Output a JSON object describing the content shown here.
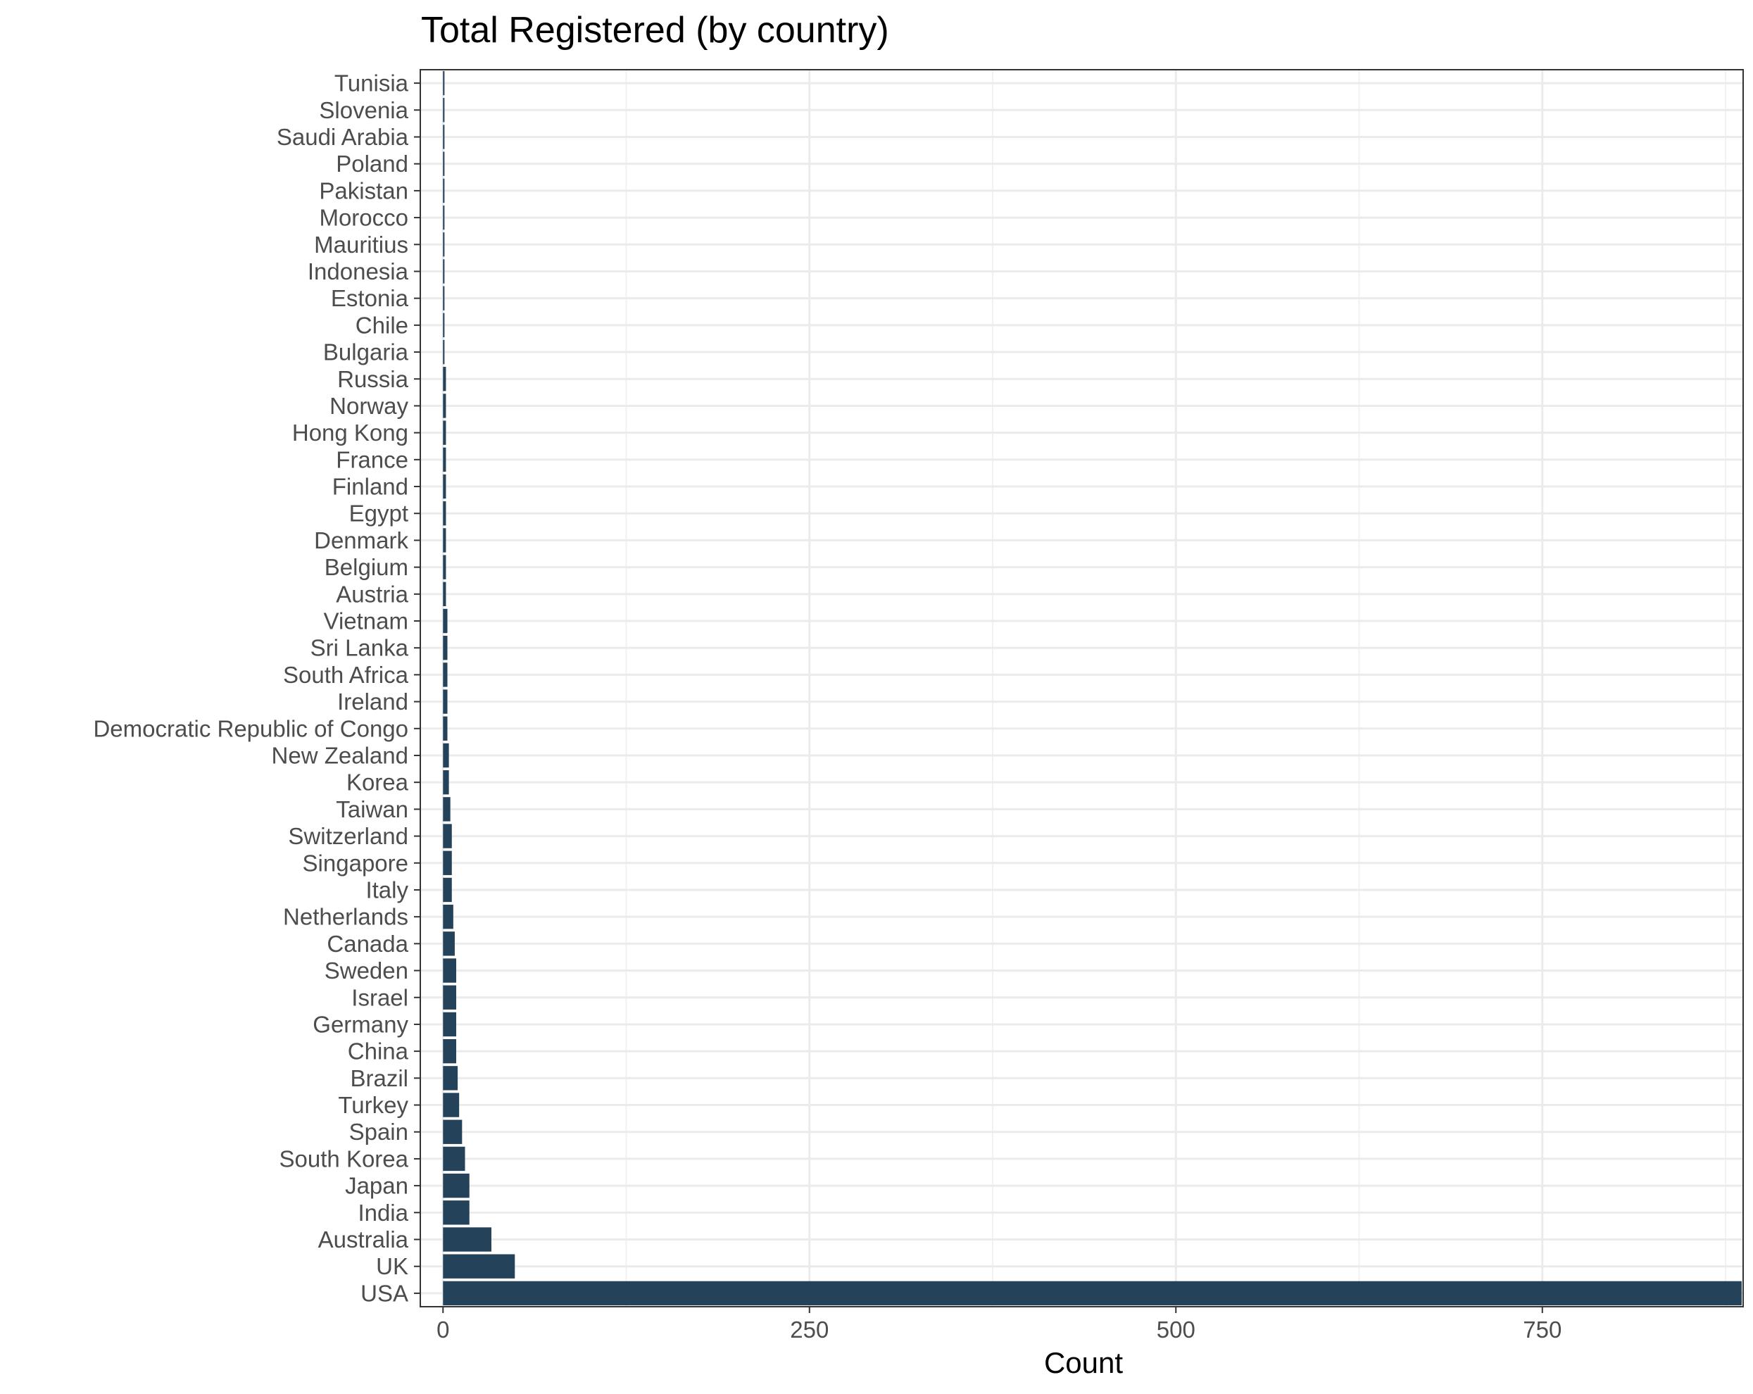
{
  "chart_data": {
    "type": "bar",
    "orientation": "horizontal",
    "title": "Total Registered (by country)",
    "xlabel": "Count",
    "ylabel": "",
    "xlim": [
      -15.5,
      887
    ],
    "xticks": [
      0,
      250,
      500,
      750
    ],
    "grid": true,
    "bar_color": "#24425a",
    "categories": [
      "Tunisia",
      "Slovenia",
      "Saudi Arabia",
      "Poland",
      "Pakistan",
      "Morocco",
      "Mauritius",
      "Indonesia",
      "Estonia",
      "Chile",
      "Bulgaria",
      "Russia",
      "Norway",
      "Hong Kong",
      "France",
      "Finland",
      "Egypt",
      "Denmark",
      "Belgium",
      "Austria",
      "Vietnam",
      "Sri Lanka",
      "South Africa",
      "Ireland",
      "Democratic Republic of Congo",
      "New Zealand",
      "Korea",
      "Taiwan",
      "Switzerland",
      "Singapore",
      "Italy",
      "Netherlands",
      "Canada",
      "Sweden",
      "Israel",
      "Germany",
      "China",
      "Brazil",
      "Turkey",
      "Spain",
      "South Korea",
      "Japan",
      "India",
      "Australia",
      "UK",
      "USA"
    ],
    "values": [
      1,
      1,
      1,
      1,
      1,
      1,
      1,
      1,
      1,
      1,
      1,
      2,
      2,
      2,
      2,
      2,
      2,
      2,
      2,
      2,
      3,
      3,
      3,
      3,
      3,
      4,
      4,
      5,
      6,
      6,
      6,
      7,
      8,
      9,
      9,
      9,
      9,
      10,
      11,
      13,
      15,
      18,
      18,
      33,
      49,
      886
    ]
  }
}
